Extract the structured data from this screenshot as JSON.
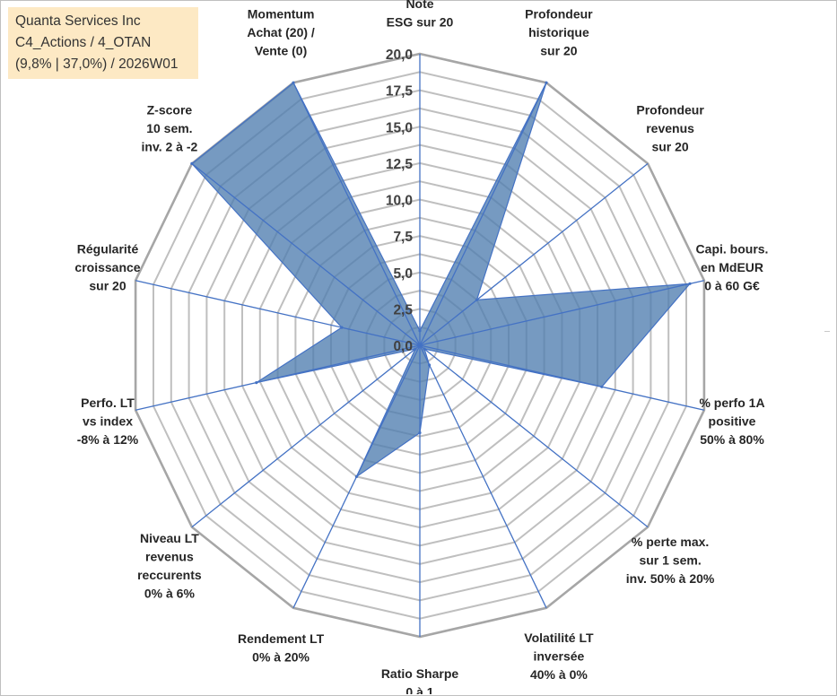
{
  "info": {
    "line1": "Quanta Services Inc",
    "line2": "C4_Actions / 4_OTAN",
    "line3": "(9,8% | 37,0%) / 2026W01"
  },
  "colors": {
    "fill": "#4f7db0",
    "series_line": "#4472c4",
    "grid": "#bfbfbf",
    "info_bg": "#fde9c4"
  },
  "chart_data": {
    "type": "radar",
    "title": "",
    "r_range": [
      0,
      20
    ],
    "ticks": [
      "0,0",
      "2,5",
      "5,0",
      "7,5",
      "10,0",
      "12,5",
      "15,0",
      "17,5",
      "20,0"
    ],
    "axes": [
      [
        "Note",
        "ESG sur 20"
      ],
      [
        "Profondeur",
        "historique",
        "sur 20"
      ],
      [
        "Profondeur",
        "revenus",
        "sur 20"
      ],
      [
        "Capi. bours.",
        "en MdEUR",
        "0 à 60 G€"
      ],
      [
        "% perfo 1A",
        "positive",
        "50% à 80%"
      ],
      [
        "% perte max.",
        "sur 1 sem.",
        "inv. 50% à 20%"
      ],
      [
        "Volatilité LT",
        "inversée",
        "40% à 0%"
      ],
      [
        "Ratio Sharpe",
        "0 à 1"
      ],
      [
        "Rendement LT",
        "0% à 20%"
      ],
      [
        "Niveau LT",
        "revenus",
        "reccurents",
        "0% à 6%"
      ],
      [
        "Perfo. LT",
        "vs index",
        "-8% à 12%"
      ],
      [
        "Régularité",
        "croissance",
        "sur 20"
      ],
      [
        "Z-score",
        "10 sem.",
        "inv. 2 à -2"
      ],
      [
        "Momentum",
        "Achat (20) /",
        "Vente (0)"
      ]
    ],
    "series": [
      {
        "name": "Quanta Services Inc",
        "values": [
          1.0,
          20.0,
          5.0,
          19.0,
          12.8,
          0.4,
          1.5,
          6.0,
          10.0,
          0.4,
          11.5,
          5.5,
          20.0,
          20.0
        ]
      }
    ]
  }
}
